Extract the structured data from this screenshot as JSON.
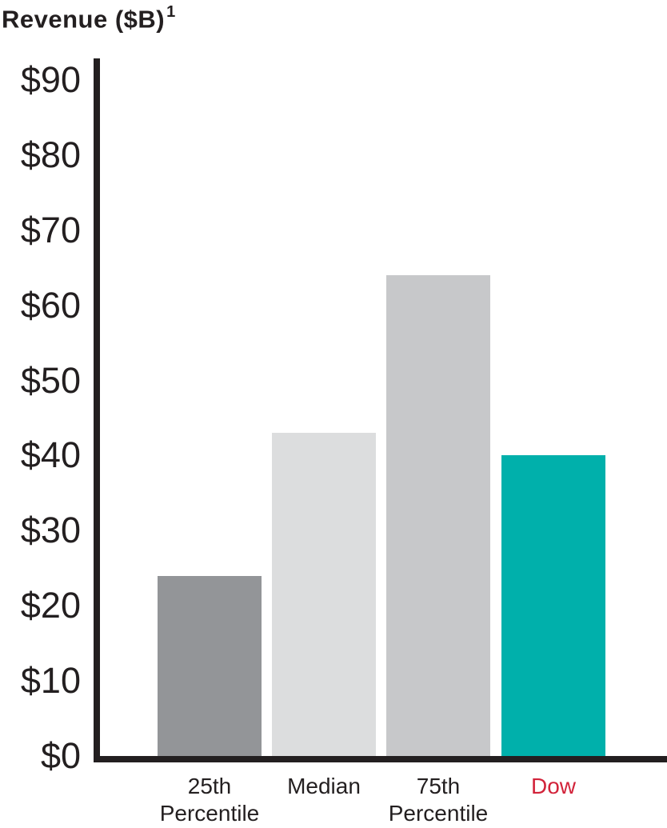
{
  "title": {
    "text": "Revenue ($B)",
    "superscript": "1"
  },
  "chart_data": {
    "type": "bar",
    "title": "Revenue ($B)",
    "title_footnote_marker": "1",
    "categories": [
      "25th Percentile",
      "Median",
      "75th Percentile",
      "Dow"
    ],
    "category_lines": [
      [
        "25th",
        "Percentile"
      ],
      [
        "Median"
      ],
      [
        "75th",
        "Percentile"
      ],
      [
        "Dow"
      ]
    ],
    "values": [
      24,
      43,
      64,
      40
    ],
    "xlabel": "",
    "ylabel": "Revenue ($B)",
    "ylim": [
      0,
      90
    ],
    "ytick_step": 10,
    "ytick_labels": [
      "$0",
      "$10",
      "$20",
      "$30",
      "$40",
      "$50",
      "$60",
      "$70",
      "$80",
      "$90"
    ],
    "grid": false,
    "legend": false,
    "bar_colors": [
      "#939598",
      "#DCDDDE",
      "#C7C8CA",
      "#00B0AB"
    ],
    "category_label_colors": [
      "#231F20",
      "#231F20",
      "#231F20",
      "#D2233A"
    ],
    "axis_color": "#231F20",
    "highlighted_category": "Dow"
  }
}
